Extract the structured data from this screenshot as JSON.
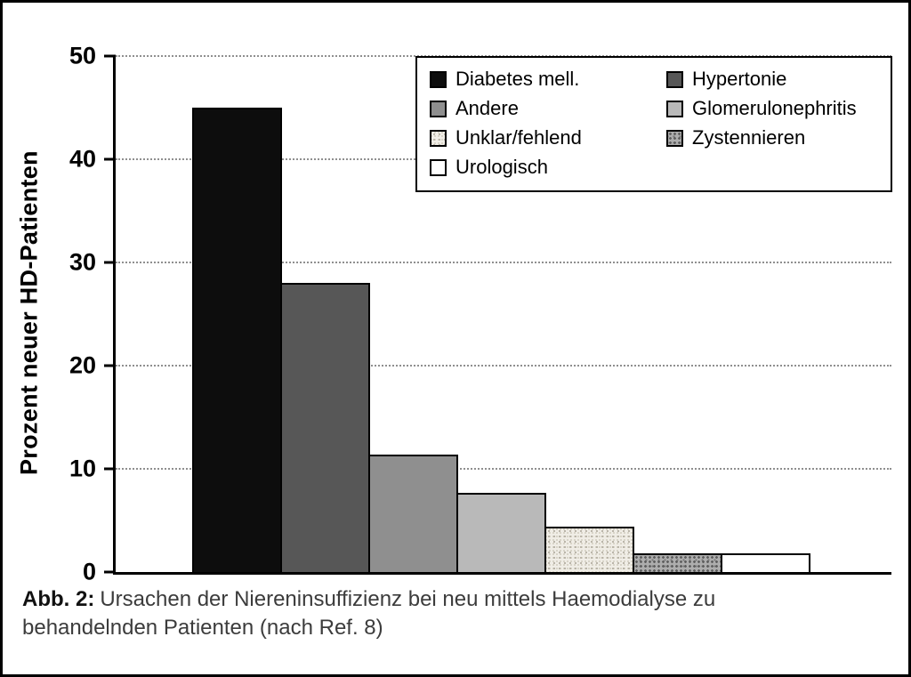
{
  "figure": {
    "caption_label": "Abb. 2:",
    "caption_text": "Ursachen der Niereninsuffizienz bei neu mittels Haemodialyse zu behandelnden Patienten (nach Ref. 8)"
  },
  "chart_data": {
    "type": "bar",
    "title": "",
    "xlabel": "",
    "ylabel": "Prozent neuer HD-Patienten",
    "ylim": [
      0,
      50
    ],
    "yticks": [
      0,
      10,
      20,
      30,
      40,
      50
    ],
    "grid": "horizontal-dotted",
    "legend_position": "top-right-inside",
    "categories": [
      "Diabetes mell.",
      "Hypertonie",
      "Andere",
      "Glomerulonephritis",
      "Unklar/fehlend",
      "Zystennieren",
      "Urologisch"
    ],
    "values": [
      45,
      28,
      11.4,
      7.7,
      4.4,
      1.8,
      1.8
    ],
    "bar_styles": [
      {
        "fill": "#0d0d0d",
        "pattern": "solid"
      },
      {
        "fill": "#575757",
        "pattern": "solid"
      },
      {
        "fill": "#8f8f8f",
        "pattern": "solid"
      },
      {
        "fill": "#b9b9b9",
        "pattern": "solid"
      },
      {
        "fill": "#f0ede6",
        "pattern": "fine-speckle"
      },
      {
        "fill": "#adadad",
        "pattern": "coarse-speckle"
      },
      {
        "fill": "#ffffff",
        "pattern": "solid"
      }
    ]
  }
}
